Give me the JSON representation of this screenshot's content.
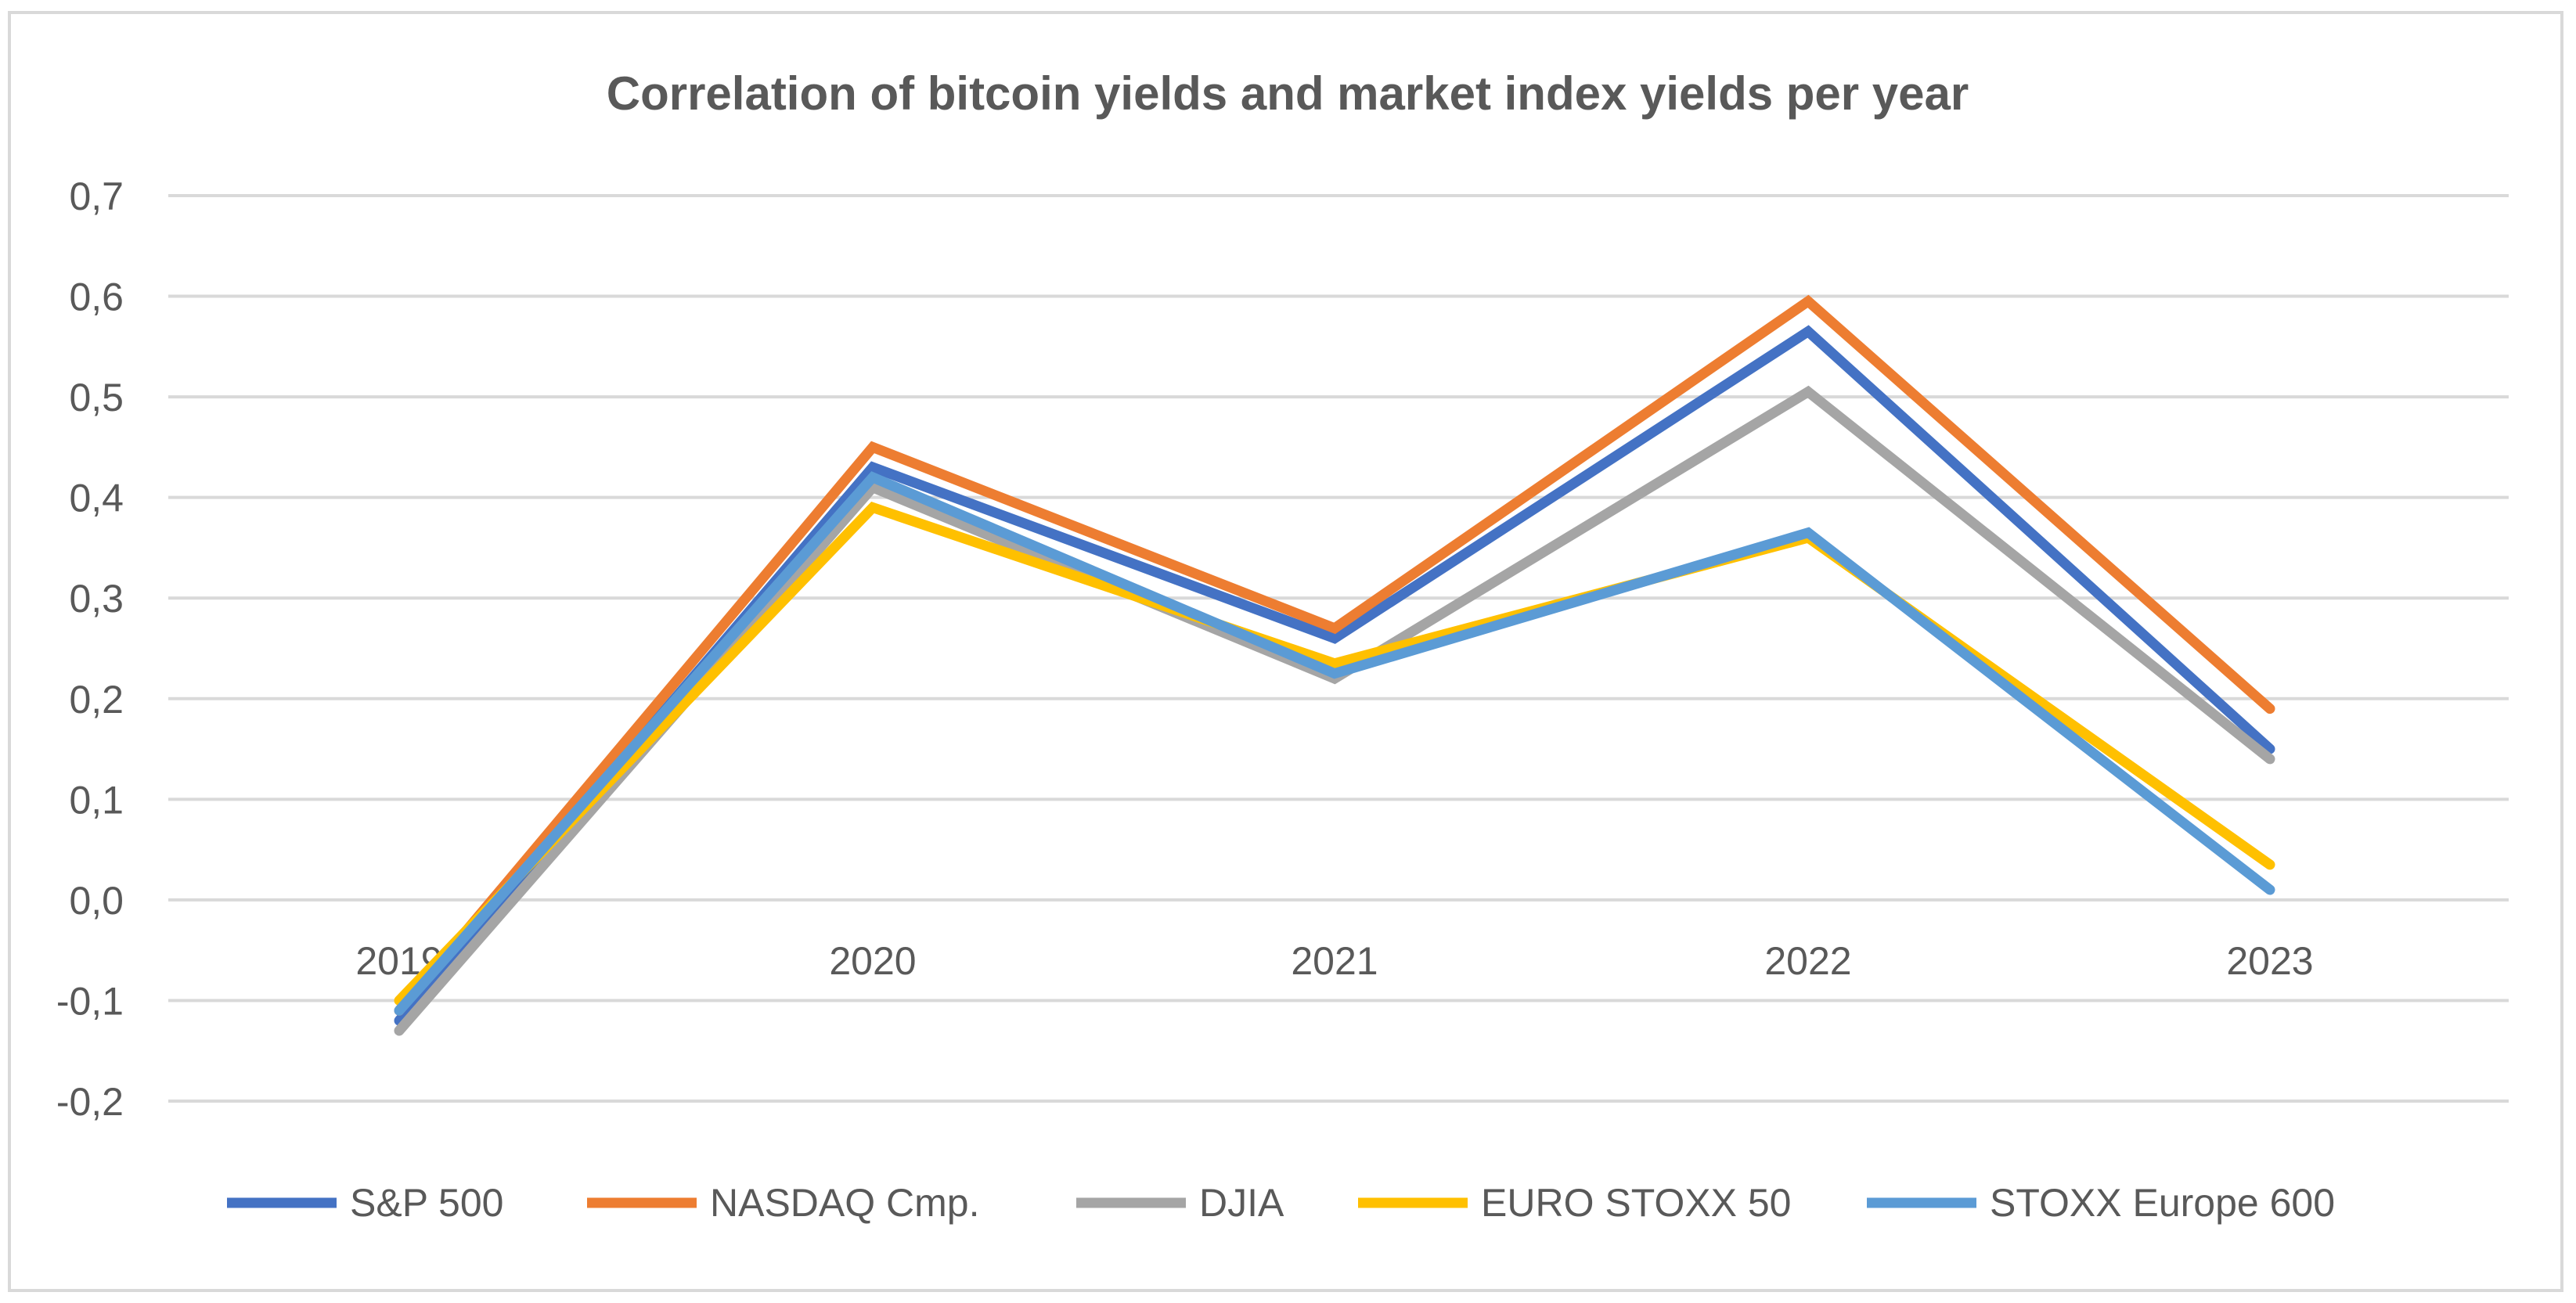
{
  "chart_data": {
    "type": "line",
    "title": "Correlation of bitcoin yields and market index yields per year",
    "categories": [
      "2019",
      "2020",
      "2021",
      "2022",
      "2023"
    ],
    "ylim": [
      -0.2,
      0.7
    ],
    "yticks": [
      0.7,
      0.6,
      0.5,
      0.4,
      0.3,
      0.2,
      0.1,
      0.0,
      -0.1,
      -0.2
    ],
    "ytick_labels": [
      "0,7",
      "0,6",
      "0,5",
      "0,4",
      "0,3",
      "0,2",
      "0,1",
      "0,0",
      "-0,1",
      "-0,2"
    ],
    "grid": true,
    "legend_position": "bottom",
    "series": [
      {
        "name": "S&P 500",
        "color": "#4472c4",
        "values": [
          -0.12,
          0.43,
          0.26,
          0.565,
          0.15
        ]
      },
      {
        "name": "NASDAQ Cmp.",
        "color": "#ed7d31",
        "values": [
          -0.11,
          0.45,
          0.27,
          0.595,
          0.19
        ]
      },
      {
        "name": "DJIA",
        "color": "#a5a5a5",
        "values": [
          -0.13,
          0.41,
          0.22,
          0.505,
          0.14
        ]
      },
      {
        "name": "EURO STOXX 50",
        "color": "#ffc000",
        "values": [
          -0.1,
          0.39,
          0.235,
          0.36,
          0.035
        ]
      },
      {
        "name": "STOXX Europe 600",
        "color": "#5b9bd5",
        "values": [
          -0.11,
          0.42,
          0.225,
          0.365,
          0.01
        ]
      }
    ]
  }
}
